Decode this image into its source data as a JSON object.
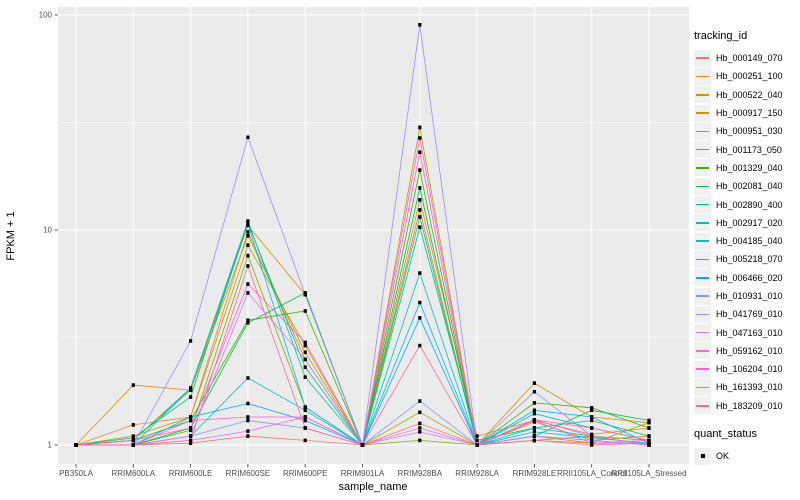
{
  "chart_data": {
    "type": "line",
    "title": "",
    "xlabel": "sample_name",
    "ylabel": "FPKM + 1",
    "y_scale": "log10",
    "ylim": [
      0.9,
      110
    ],
    "yticks": [
      1,
      10,
      100
    ],
    "grid": true,
    "legend_position": "right",
    "legend_title": "tracking_id",
    "point_legend": {
      "title": "quant_status",
      "items": [
        {
          "label": "OK",
          "shape": "square",
          "color": "#000000"
        }
      ]
    },
    "style": {
      "panel_fill": "#EBEBEB",
      "grid_color": "#FFFFFF",
      "tick_color": "#333333",
      "tick_label_color": "#4D4D4D",
      "point_color": "#000000",
      "legend_key_fill": "#F0F0F0"
    },
    "categories": [
      "PB350LA",
      "RRIM600LA",
      "RRIM600LE",
      "RRIM600SE",
      "RRIM600PE",
      "RRIM901LA",
      "RRIM928BA",
      "RRIM928LA",
      "RRIM928LE",
      "RRII105LA_Control",
      "RRII105LA_Stressed"
    ],
    "series": [
      {
        "name": "Hb_000149_070",
        "color": "#F8766D",
        "values": [
          1,
          1,
          1.02,
          1.1,
          1.05,
          1,
          1.26,
          1,
          1.05,
          1.02,
          1.02
        ]
      },
      {
        "name": "Hb_000251_100",
        "color": "#EA8331",
        "values": [
          1,
          1.24,
          1.35,
          9.8,
          2.5,
          1,
          13.8,
          1.1,
          1.3,
          1.12,
          1.2
        ]
      },
      {
        "name": "Hb_000522_040",
        "color": "#D89000",
        "values": [
          1,
          1.9,
          1.8,
          10.5,
          5.0,
          1,
          12.4,
          1,
          1.94,
          1.35,
          1.27
        ]
      },
      {
        "name": "Hb_000917_150",
        "color": "#C09B00",
        "values": [
          1,
          1.1,
          1.35,
          8.5,
          2.9,
          1,
          30,
          1,
          1.28,
          1.05,
          1.1
        ]
      },
      {
        "name": "Hb_000951_030",
        "color": "#A3A500",
        "values": [
          1,
          1.05,
          1.8,
          9.4,
          2.7,
          1,
          1.42,
          1,
          1.1,
          1.02,
          1.27
        ]
      },
      {
        "name": "Hb_001173_050",
        "color": "#7CAE00",
        "values": [
          1,
          1,
          1.17,
          7.6,
          1.5,
          1,
          1.05,
          1,
          1.05,
          1.1,
          1.05
        ]
      },
      {
        "name": "Hb_001329_040",
        "color": "#39B600",
        "values": [
          1,
          1.05,
          1.3,
          3.8,
          4.2,
          1,
          19,
          1,
          1.57,
          1.49,
          1.2
        ]
      },
      {
        "name": "Hb_002081_040",
        "color": "#00BB4E",
        "values": [
          1,
          1,
          1.2,
          3.7,
          5.1,
          1,
          15.7,
          1,
          1.1,
          1.45,
          1.3
        ]
      },
      {
        "name": "Hb_002890_400",
        "color": "#00C078",
        "values": [
          1,
          1.08,
          1.67,
          10.8,
          2.3,
          1,
          10.3,
          1.05,
          1.2,
          1.3,
          1.1
        ]
      },
      {
        "name": "Hb_002917_020",
        "color": "#00C0A2",
        "values": [
          1,
          1.05,
          1.84,
          11.0,
          2.07,
          1,
          11.5,
          1,
          1.4,
          1.2,
          1.05
        ]
      },
      {
        "name": "Hb_004185_040",
        "color": "#00BFC4",
        "values": [
          1,
          1,
          1.1,
          2.05,
          1.45,
          1,
          6.3,
          1,
          1.15,
          1.08,
          1.02
        ]
      },
      {
        "name": "Hb_005218_070",
        "color": "#00BAE3",
        "values": [
          1,
          1,
          1.84,
          10.7,
          1.5,
          1,
          4.6,
          1,
          1.2,
          1.1,
          1
        ]
      },
      {
        "name": "Hb_006466_020",
        "color": "#00ACFC",
        "values": [
          1,
          1,
          1.35,
          1.56,
          1.3,
          1,
          3.9,
          1,
          1.45,
          1.35,
          1.02
        ]
      },
      {
        "name": "Hb_010931_010",
        "color": "#7F96FF",
        "values": [
          1,
          1,
          1.1,
          1.3,
          1.2,
          1,
          1.6,
          1,
          1.1,
          1.05,
          1
        ]
      },
      {
        "name": "Hb_041769_010",
        "color": "#A58AFF",
        "values": [
          1,
          1,
          3.05,
          27,
          5.0,
          1,
          90,
          1,
          1.77,
          1.1,
          1
        ]
      },
      {
        "name": "Hb_047163_010",
        "color": "#CF78FF",
        "values": [
          1,
          1,
          1.1,
          5.1,
          2.5,
          1,
          1.15,
          1,
          1.1,
          1.05,
          1
        ]
      },
      {
        "name": "Hb_059162_010",
        "color": "#EC69EF",
        "values": [
          1,
          1,
          1.05,
          1.16,
          1.35,
          1,
          1.2,
          1,
          1.3,
          1.02,
          1.05
        ]
      },
      {
        "name": "Hb_106204_010",
        "color": "#FB61D7",
        "values": [
          1,
          1,
          1.3,
          1.35,
          1.35,
          1,
          26.8,
          1,
          1.31,
          1.1,
          1
        ]
      },
      {
        "name": "Hb_161393_010",
        "color": "#FF62BC",
        "values": [
          1,
          1.05,
          1.2,
          5.6,
          3.0,
          1,
          23,
          1,
          1.31,
          1.2,
          1.05
        ]
      },
      {
        "name": "Hb_183209_010",
        "color": "#FF6A9A",
        "values": [
          1,
          1,
          1.05,
          6.8,
          1.2,
          1,
          2.9,
          1,
          1.05,
          1,
          1.02
        ]
      }
    ]
  }
}
